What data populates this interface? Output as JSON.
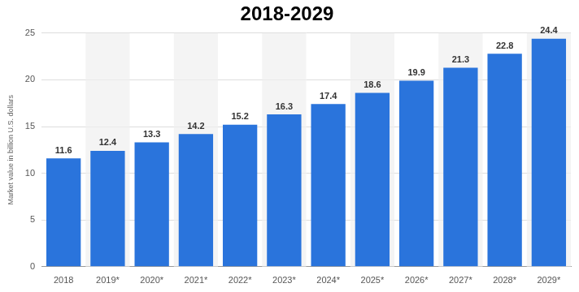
{
  "chart_data": {
    "type": "bar",
    "title": "2018-2029",
    "y_label": "Market value in billion U.S. dollars",
    "categories": [
      "2018",
      "2019*",
      "2020*",
      "2021*",
      "2022*",
      "2023*",
      "2024*",
      "2025*",
      "2026*",
      "2027*",
      "2028*",
      "2029*"
    ],
    "values": [
      11.6,
      12.4,
      13.3,
      14.2,
      15.2,
      16.3,
      17.4,
      18.6,
      19.9,
      21.3,
      22.8,
      24.4
    ],
    "color": "#2a74dc",
    "ylim": [
      0,
      25
    ],
    "yticks": [
      0,
      5,
      10,
      15,
      20,
      25
    ],
    "grid": true,
    "data_labels": true
  }
}
